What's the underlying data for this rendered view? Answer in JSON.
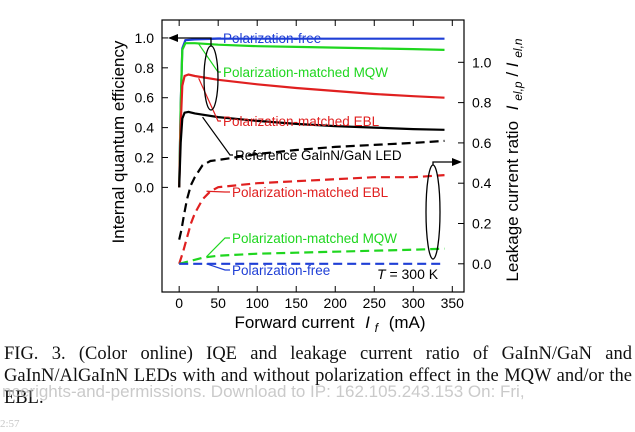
{
  "chart_data": {
    "type": "line",
    "xlabel": "Forward current",
    "xlabel_symbol": "I",
    "xlabel_subscript": "f",
    "xlabel_unit": "(mA)",
    "x_ticks": [
      0,
      50,
      100,
      150,
      200,
      250,
      300,
      350
    ],
    "xlim": [
      -22,
      365
    ],
    "ylabel_left": "Internal quantum efficiency",
    "y_ticks_left": [
      0.0,
      0.2,
      0.4,
      0.6,
      0.8,
      1.0
    ],
    "ylim_left": [
      -0.7,
      1.12
    ],
    "ylabel_right": "Leakage current ratio",
    "ylabel_right_symbol": "I",
    "ylabel_right_sub1": "el,p",
    "ylabel_right_sep": " / ",
    "ylabel_right_sub2": "el,n",
    "y_ticks_right": [
      0.0,
      0.2,
      0.4,
      0.6,
      0.8,
      1.0
    ],
    "ylim_right": [
      -0.14,
      1.21
    ],
    "series_iqe": [
      {
        "name": "Polarization-free",
        "color": "#1f3fd6",
        "x": [
          0,
          2,
          4,
          8,
          20,
          50,
          100,
          150,
          200,
          250,
          300,
          340
        ],
        "y": [
          0.0,
          0.55,
          0.93,
          0.985,
          0.99,
          0.995,
          0.995,
          0.995,
          0.995,
          0.995,
          0.995,
          0.995
        ]
      },
      {
        "name": "Polarization-matched MQW",
        "color": "#1fd61f",
        "x": [
          0,
          2,
          4,
          8,
          20,
          50,
          100,
          150,
          200,
          250,
          300,
          340
        ],
        "y": [
          0.0,
          0.55,
          0.92,
          0.965,
          0.965,
          0.955,
          0.945,
          0.94,
          0.935,
          0.93,
          0.925,
          0.92
        ]
      },
      {
        "name": "Polarization-matched EBL",
        "color": "#e02020",
        "x": [
          0,
          2,
          4,
          7,
          12,
          20,
          50,
          100,
          150,
          200,
          250,
          300,
          340
        ],
        "y": [
          0.0,
          0.42,
          0.68,
          0.745,
          0.755,
          0.745,
          0.72,
          0.69,
          0.665,
          0.645,
          0.625,
          0.61,
          0.6
        ]
      },
      {
        "name": "Reference GaInN/GaN LED",
        "color": "#000000",
        "x": [
          0,
          2,
          4,
          7,
          12,
          20,
          50,
          100,
          150,
          200,
          250,
          300,
          340
        ],
        "y": [
          0.0,
          0.3,
          0.46,
          0.5,
          0.505,
          0.495,
          0.47,
          0.445,
          0.425,
          0.41,
          0.4,
          0.39,
          0.385
        ]
      }
    ],
    "series_leakage": [
      {
        "name": "Reference GaInN/GaN LED",
        "color": "#000000",
        "x": [
          0,
          3,
          6,
          10,
          15,
          20,
          25,
          30,
          35,
          40,
          50,
          100,
          150,
          200,
          250,
          300,
          340
        ],
        "y": [
          0.12,
          0.17,
          0.24,
          0.32,
          0.39,
          0.43,
          0.46,
          0.49,
          0.5,
          0.51,
          0.515,
          0.545,
          0.565,
          0.58,
          0.59,
          0.6,
          0.61
        ]
      },
      {
        "name": "Polarization-matched EBL",
        "color": "#e02020",
        "x": [
          0,
          5,
          10,
          15,
          20,
          30,
          40,
          50,
          100,
          150,
          200,
          250,
          300,
          340
        ],
        "y": [
          0.0,
          0.06,
          0.13,
          0.2,
          0.25,
          0.32,
          0.36,
          0.38,
          0.4,
          0.41,
          0.42,
          0.43,
          0.43,
          0.44
        ]
      },
      {
        "name": "Polarization-matched MQW",
        "color": "#1fd61f",
        "x": [
          0,
          10,
          20,
          30,
          50,
          100,
          150,
          200,
          250,
          300,
          340
        ],
        "y": [
          0.0,
          0.01,
          0.02,
          0.03,
          0.04,
          0.05,
          0.055,
          0.06,
          0.065,
          0.07,
          0.075
        ]
      },
      {
        "name": "Polarization-free",
        "color": "#1f3fd6",
        "x": [
          0,
          340
        ],
        "y": [
          0.0,
          0.0
        ]
      }
    ],
    "iqe_labels": [
      "Polarization-free",
      "Polarization-matched MQW",
      "Polarization-matched EBL",
      "Reference GaInN/GaN LED"
    ],
    "leakage_labels": [
      "Polarization-matched EBL",
      "Polarization-matched MQW",
      "Polarization-free"
    ],
    "temperature_symbol": "T",
    "temperature_value": " = 300 K"
  },
  "caption": {
    "text": "FIG. 3. (Color online) IQE and leakage current ratio of GaInN/GaN and GaInN/AlGaInN LEDs with and without polarization effect in the MQW and/or the EBL."
  },
  "watermark": {
    "text": "ncerights-and-permissions. Download to IP: 162.105.243.153 On: Fri,"
  },
  "page_fragment": "2:57"
}
